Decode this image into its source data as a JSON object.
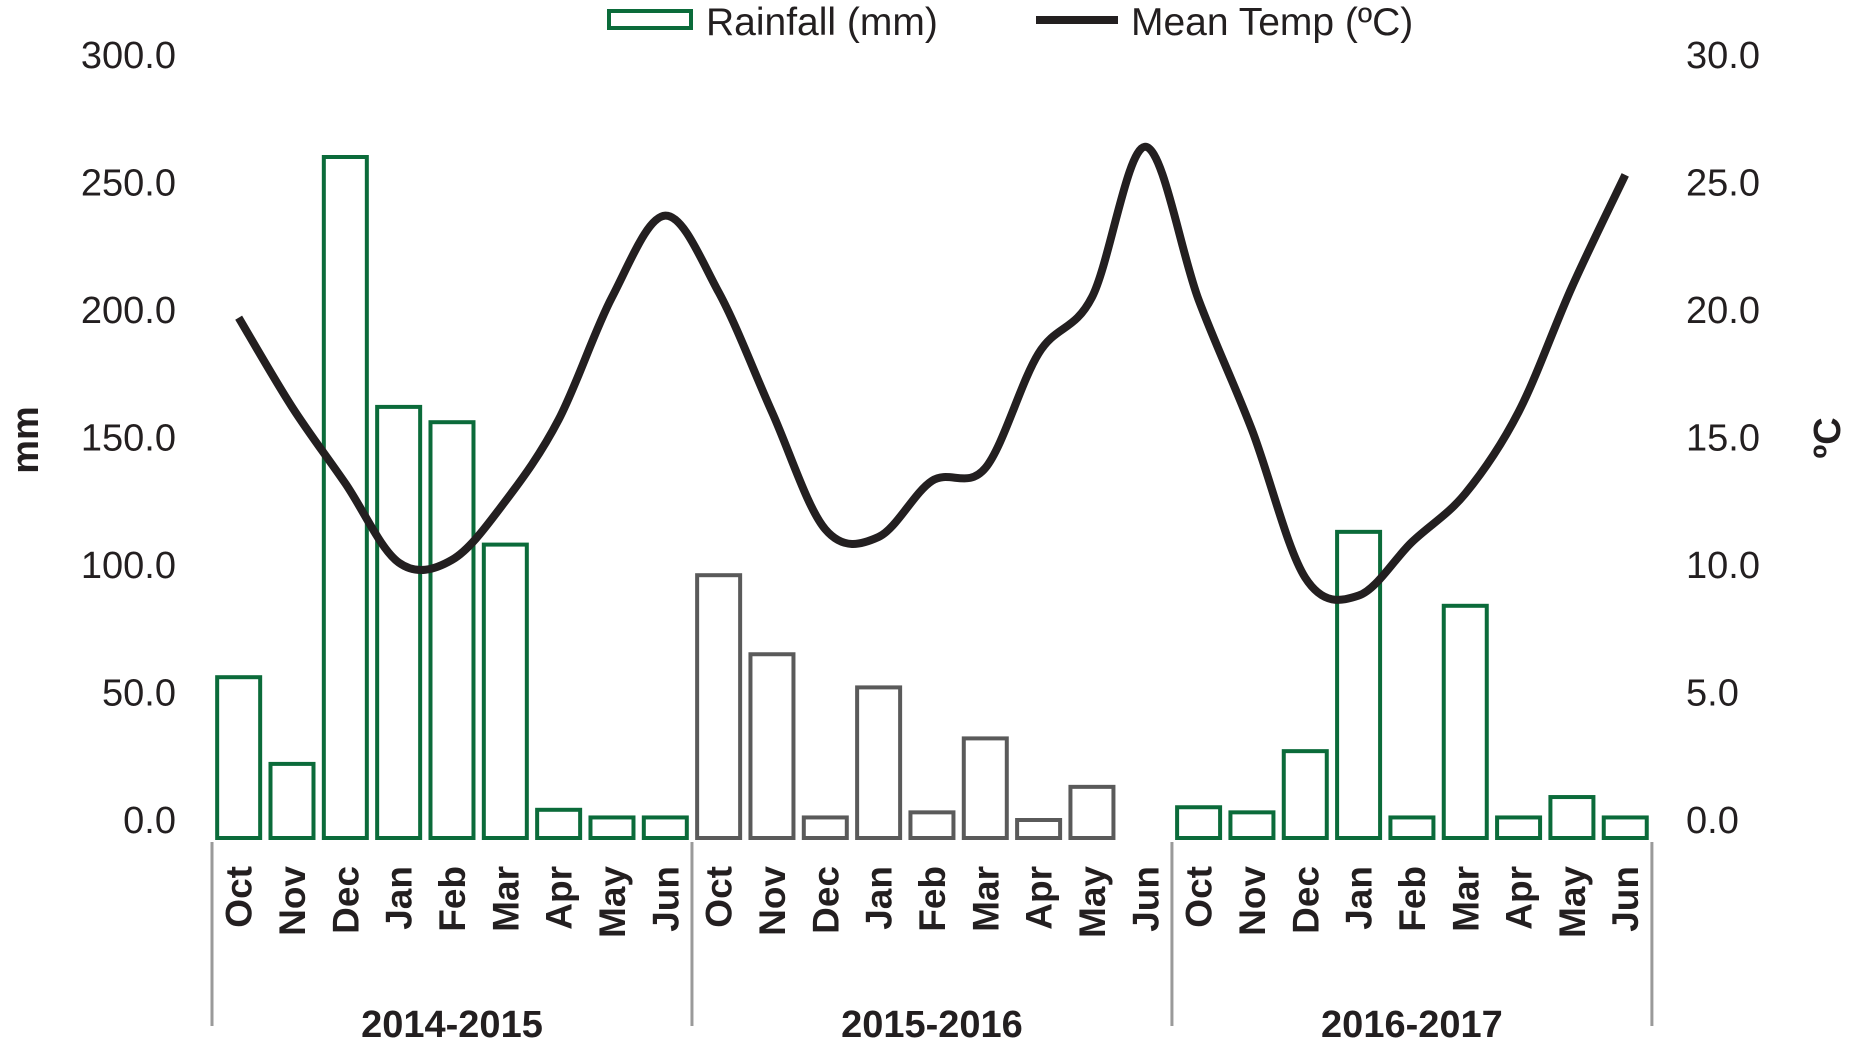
{
  "chart_data": {
    "type": "bar",
    "title": "",
    "legend": {
      "position": "top-center",
      "entries": [
        {
          "label": "Rainfall (mm)",
          "kind": "bar-outline",
          "color": "#0b6b3a"
        },
        {
          "label": "Mean Temp (ºC)",
          "kind": "line",
          "color": "#231f20"
        }
      ]
    },
    "y_left": {
      "label": "mm",
      "ylim": [
        0,
        300
      ],
      "ticks": [
        "0.0",
        "50.0",
        "100.0",
        "150.0",
        "200.0",
        "250.0",
        "300.0"
      ],
      "tick_values": [
        0,
        50,
        100,
        150,
        200,
        250,
        300
      ]
    },
    "y_right": {
      "label": "ºC",
      "ylim": [
        0,
        30
      ],
      "ticks": [
        "0.0",
        "5.0",
        "10.0",
        "15.0",
        "20.0",
        "25.0",
        "30.0"
      ],
      "tick_values": [
        0,
        5,
        10,
        15,
        20,
        25,
        30
      ]
    },
    "grid": false,
    "groups": [
      {
        "label": "2014-2015",
        "bar_color": "#0b6b3a",
        "months": [
          "Oct",
          "Nov",
          "Dec",
          "Jan",
          "Feb",
          "Mar",
          "Apr",
          "May",
          "Jun"
        ],
        "rainfall_mm": [
          56,
          22,
          260,
          162,
          156,
          108,
          4,
          1,
          1
        ],
        "mean_temp_c": [
          19.7,
          16.2,
          13.2,
          10.1,
          10.2,
          12.5,
          15.7,
          20.5,
          23.7
        ]
      },
      {
        "label": "2015-2016",
        "bar_color": "#5a5a5a",
        "months": [
          "Oct",
          "Nov",
          "Dec",
          "Jan",
          "Feb",
          "Mar",
          "Apr",
          "May",
          "Jun"
        ],
        "rainfall_mm": [
          96,
          65,
          1,
          52,
          3,
          32,
          0,
          13,
          null
        ],
        "mean_temp_c": [
          20.7,
          16.0,
          11.4,
          11.1,
          13.3,
          13.8,
          18.3,
          20.5,
          26.4
        ]
      },
      {
        "label": "2016-2017",
        "bar_color": "#0b6b3a",
        "months": [
          "Oct",
          "Nov",
          "Dec",
          "Jan",
          "Feb",
          "Mar",
          "Apr",
          "May",
          "Jun"
        ],
        "rainfall_mm": [
          5,
          3,
          27,
          113,
          1,
          84,
          1,
          9,
          1
        ],
        "mean_temp_c": [
          20.4,
          15.3,
          9.5,
          8.8,
          10.9,
          12.8,
          16.0,
          20.9,
          25.3
        ]
      }
    ],
    "colors": {
      "line": "#231f20",
      "axis": "#9a9a9a",
      "text": "#231f20"
    }
  }
}
